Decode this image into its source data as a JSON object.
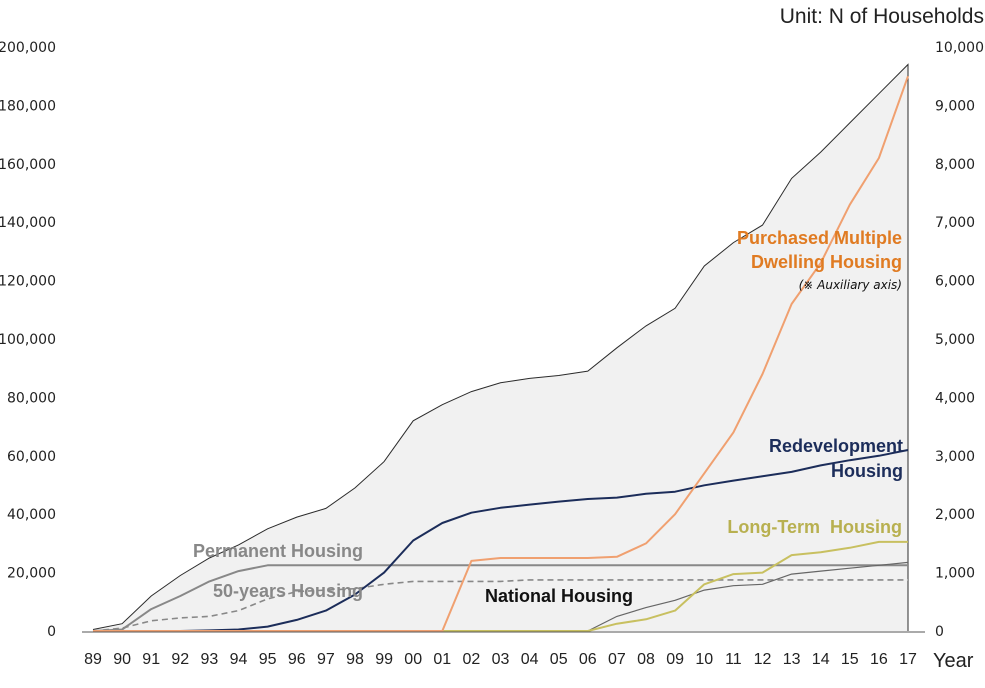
{
  "chart_data": {
    "type": "area",
    "unit_label": "Unit: N of Households",
    "x_title": "Year",
    "categories": [
      "89",
      "90",
      "91",
      "92",
      "93",
      "94",
      "95",
      "96",
      "97",
      "98",
      "99",
      "00",
      "01",
      "02",
      "03",
      "04",
      "05",
      "06",
      "07",
      "08",
      "09",
      "10",
      "11",
      "12",
      "13",
      "14",
      "15",
      "16",
      "17"
    ],
    "y_left": {
      "min": 0,
      "max": 200000,
      "ticks": [
        "0",
        "20,000",
        "40,000",
        "60,000",
        "80,000",
        "100,000",
        "120,000",
        "140,000",
        "160,000",
        "180,000",
        "200,000"
      ]
    },
    "y_right": {
      "min": 0,
      "max": 10000,
      "ticks": [
        "0",
        "1,000",
        "2,000",
        "3,000",
        "4,000",
        "5,000",
        "6,000",
        "7,000",
        "8,000",
        "9,000",
        "10,000"
      ]
    },
    "grid": false,
    "colors": {
      "total_fill": "#f1f1f1",
      "total_line": "#2b2b2b",
      "purchased": "#f0a070",
      "purchased_label": "#e07b22",
      "redevelopment": "#1c2d5a",
      "longterm": "#c8c060",
      "longterm_label": "#b8b050",
      "permanent": "#888888",
      "fifty_years": "#888888",
      "national": "#666666"
    },
    "series": [
      {
        "key": "total",
        "axis": "left",
        "values": [
          500,
          2500,
          12000,
          19000,
          25000,
          29500,
          35000,
          39000,
          42000,
          49000,
          58000,
          72000,
          77500,
          82000,
          85000,
          86500,
          87500,
          89000,
          97000,
          104500,
          110500,
          125000,
          133000,
          139000,
          155000,
          164000,
          174000,
          184000,
          194000
        ]
      },
      {
        "key": "redevelopment",
        "name": "Redevelopment Housing",
        "name_lines": [
          "Redevelopment",
          "Housing"
        ],
        "axis": "left",
        "values": [
          0,
          0,
          0,
          0,
          200,
          500,
          1500,
          3800,
          7000,
          12500,
          20000,
          31000,
          37000,
          40500,
          42200,
          43300,
          44300,
          45200,
          45700,
          47000,
          47700,
          49900,
          51500,
          53000,
          54500,
          56700,
          58500,
          60000,
          62000
        ]
      },
      {
        "key": "permanent",
        "name": "Permanent Housing",
        "axis": "left",
        "values": [
          0,
          500,
          7500,
          12000,
          17000,
          20500,
          22500,
          22500,
          22500,
          22500,
          22500,
          22500,
          22500,
          22500,
          22500,
          22500,
          22500,
          22500,
          22500,
          22500,
          22500,
          22500,
          22500,
          22500,
          22500,
          22500,
          22500,
          22500,
          22500
        ]
      },
      {
        "key": "fifty_years",
        "name": "50-years Housing",
        "axis": "left",
        "values": [
          0,
          1000,
          3500,
          4500,
          5000,
          7000,
          11000,
          13500,
          14000,
          14500,
          16000,
          17000,
          17000,
          17000,
          17000,
          17500,
          17500,
          17500,
          17500,
          17500,
          17500,
          17500,
          17500,
          17500,
          17500,
          17500,
          17500,
          17500,
          17500
        ]
      },
      {
        "key": "national",
        "name": "National Housing",
        "axis": "left",
        "values": [
          0,
          0,
          0,
          0,
          0,
          0,
          0,
          0,
          0,
          0,
          0,
          0,
          0,
          0,
          0,
          0,
          0,
          0,
          5000,
          8000,
          10500,
          14000,
          15500,
          16000,
          19500,
          20500,
          21500,
          22500,
          23500
        ]
      },
      {
        "key": "longterm",
        "name": "Long-Term  Housing",
        "axis": "left",
        "values": [
          0,
          0,
          0,
          0,
          0,
          0,
          0,
          0,
          0,
          0,
          0,
          0,
          0,
          0,
          0,
          0,
          0,
          0,
          2500,
          4000,
          7000,
          16000,
          19500,
          20000,
          26000,
          27000,
          28500,
          30500,
          30500
        ]
      },
      {
        "key": "purchased",
        "name": "Purchased Multiple Dwelling Housing",
        "name_lines": [
          "Purchased Multiple",
          "Dwelling Housing"
        ],
        "note": "(※ Auxiliary axis)",
        "axis": "right",
        "values": [
          0,
          0,
          0,
          0,
          0,
          0,
          0,
          0,
          0,
          0,
          0,
          0,
          0,
          1200,
          1250,
          1250,
          1250,
          1250,
          1270,
          1500,
          2000,
          2700,
          3400,
          4400,
          5600,
          6300,
          7300,
          8100,
          9500
        ]
      }
    ]
  }
}
